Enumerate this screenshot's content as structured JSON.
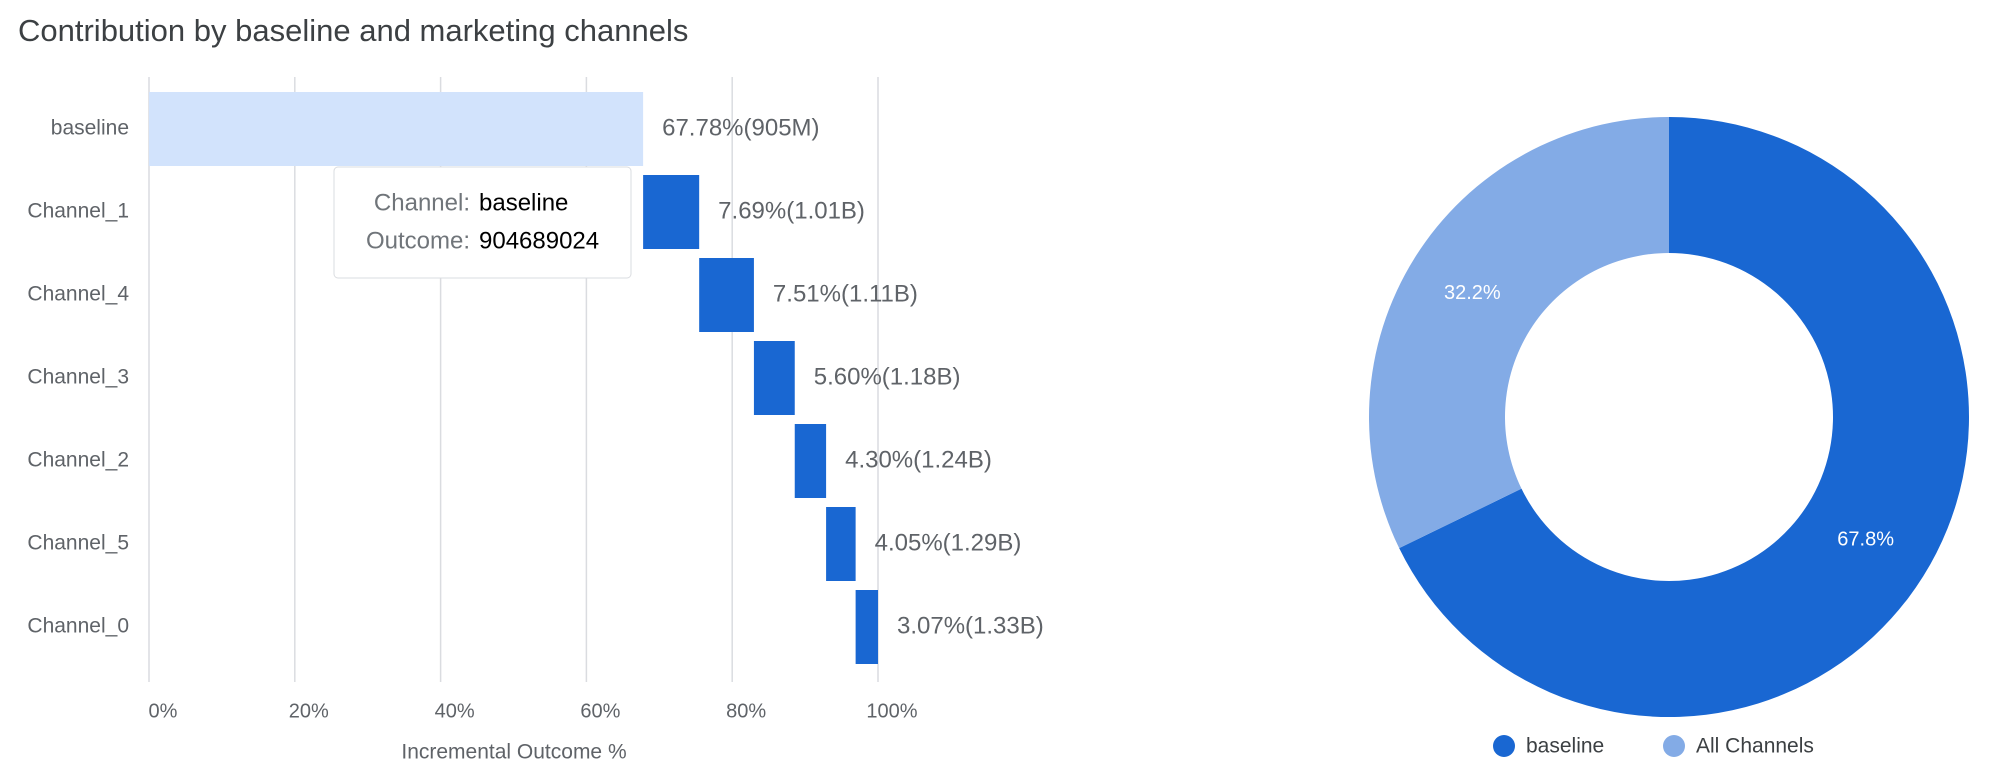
{
  "title": "Contribution by baseline and marketing channels",
  "chart_data": [
    {
      "type": "waterfall",
      "categories": [
        "baseline",
        "Channel_1",
        "Channel_4",
        "Channel_3",
        "Channel_2",
        "Channel_5",
        "Channel_0"
      ],
      "values": [
        67.78,
        7.69,
        7.51,
        5.6,
        4.3,
        4.05,
        3.07
      ],
      "value_labels": [
        "67.78%(905M)",
        "7.69%(1.01B)",
        "7.51%(1.11B)",
        "5.60%(1.18B)",
        "4.30%(1.24B)",
        "4.05%(1.29B)",
        "3.07%(1.33B)"
      ],
      "colors": [
        "#d2e3fc",
        "#1967d2",
        "#1967d2",
        "#1967d2",
        "#1967d2",
        "#1967d2",
        "#1967d2"
      ],
      "xlim": [
        0,
        100
      ],
      "xticks": [
        {
          "value": 0,
          "label": "0%"
        },
        {
          "value": 20,
          "label": "20%"
        },
        {
          "value": 40,
          "label": "40%"
        },
        {
          "value": 60,
          "label": "60%"
        },
        {
          "value": 80,
          "label": "80%"
        },
        {
          "value": 100,
          "label": "100%"
        }
      ],
      "x_label": "Incremental Outcome %",
      "grid": true
    },
    {
      "type": "donut",
      "categories": [
        "baseline",
        "All Channels"
      ],
      "values": [
        67.8,
        32.2
      ],
      "value_labels": [
        "67.8%",
        "32.2%"
      ],
      "colors": [
        "#1967d2",
        "#83abe6"
      ],
      "legend": "bottom"
    }
  ],
  "tooltip": {
    "channel_label": "Channel:",
    "channel": "baseline",
    "outcome_label": "Outcome:",
    "outcome": 904689024
  }
}
